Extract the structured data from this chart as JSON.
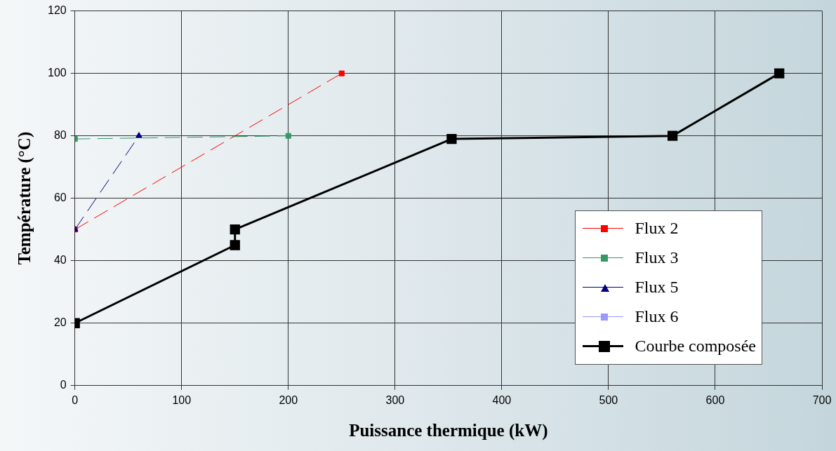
{
  "chart_data": {
    "type": "line",
    "xlabel": "Puissance thermique (kW)",
    "ylabel": "Température (°C)",
    "xlim": [
      0,
      700
    ],
    "xticks": [
      0,
      100,
      200,
      300,
      400,
      500,
      600,
      700
    ],
    "ylim": [
      0,
      120
    ],
    "yticks": [
      0,
      20,
      40,
      60,
      80,
      100,
      120
    ],
    "grid": true,
    "legend": "bottom right",
    "series": [
      {
        "name": "Flux 2",
        "color": "#ff0000",
        "x": [
          0,
          250
        ],
        "values": [
          50,
          100
        ],
        "marker": "square",
        "line_style": "dashed"
      },
      {
        "name": "Flux 3",
        "color": "#339966",
        "x": [
          0,
          200
        ],
        "values": [
          79,
          80
        ],
        "marker": "square",
        "line_style": "dashed"
      },
      {
        "name": "Flux 5",
        "color": "#000080",
        "x": [
          0,
          60
        ],
        "values": [
          50,
          80
        ],
        "marker": "triangle",
        "line_style": "dashed"
      },
      {
        "name": "Flux 6",
        "color": "#9999ff",
        "marker": "square",
        "line_style": "dashed"
      },
      {
        "name": "Courbe composée",
        "color": "#000000",
        "x": [
          0,
          150,
          150,
          353,
          560,
          660
        ],
        "values": [
          20,
          45,
          50,
          79,
          80,
          100
        ],
        "marker": "square",
        "line_style": "solid"
      }
    ]
  }
}
